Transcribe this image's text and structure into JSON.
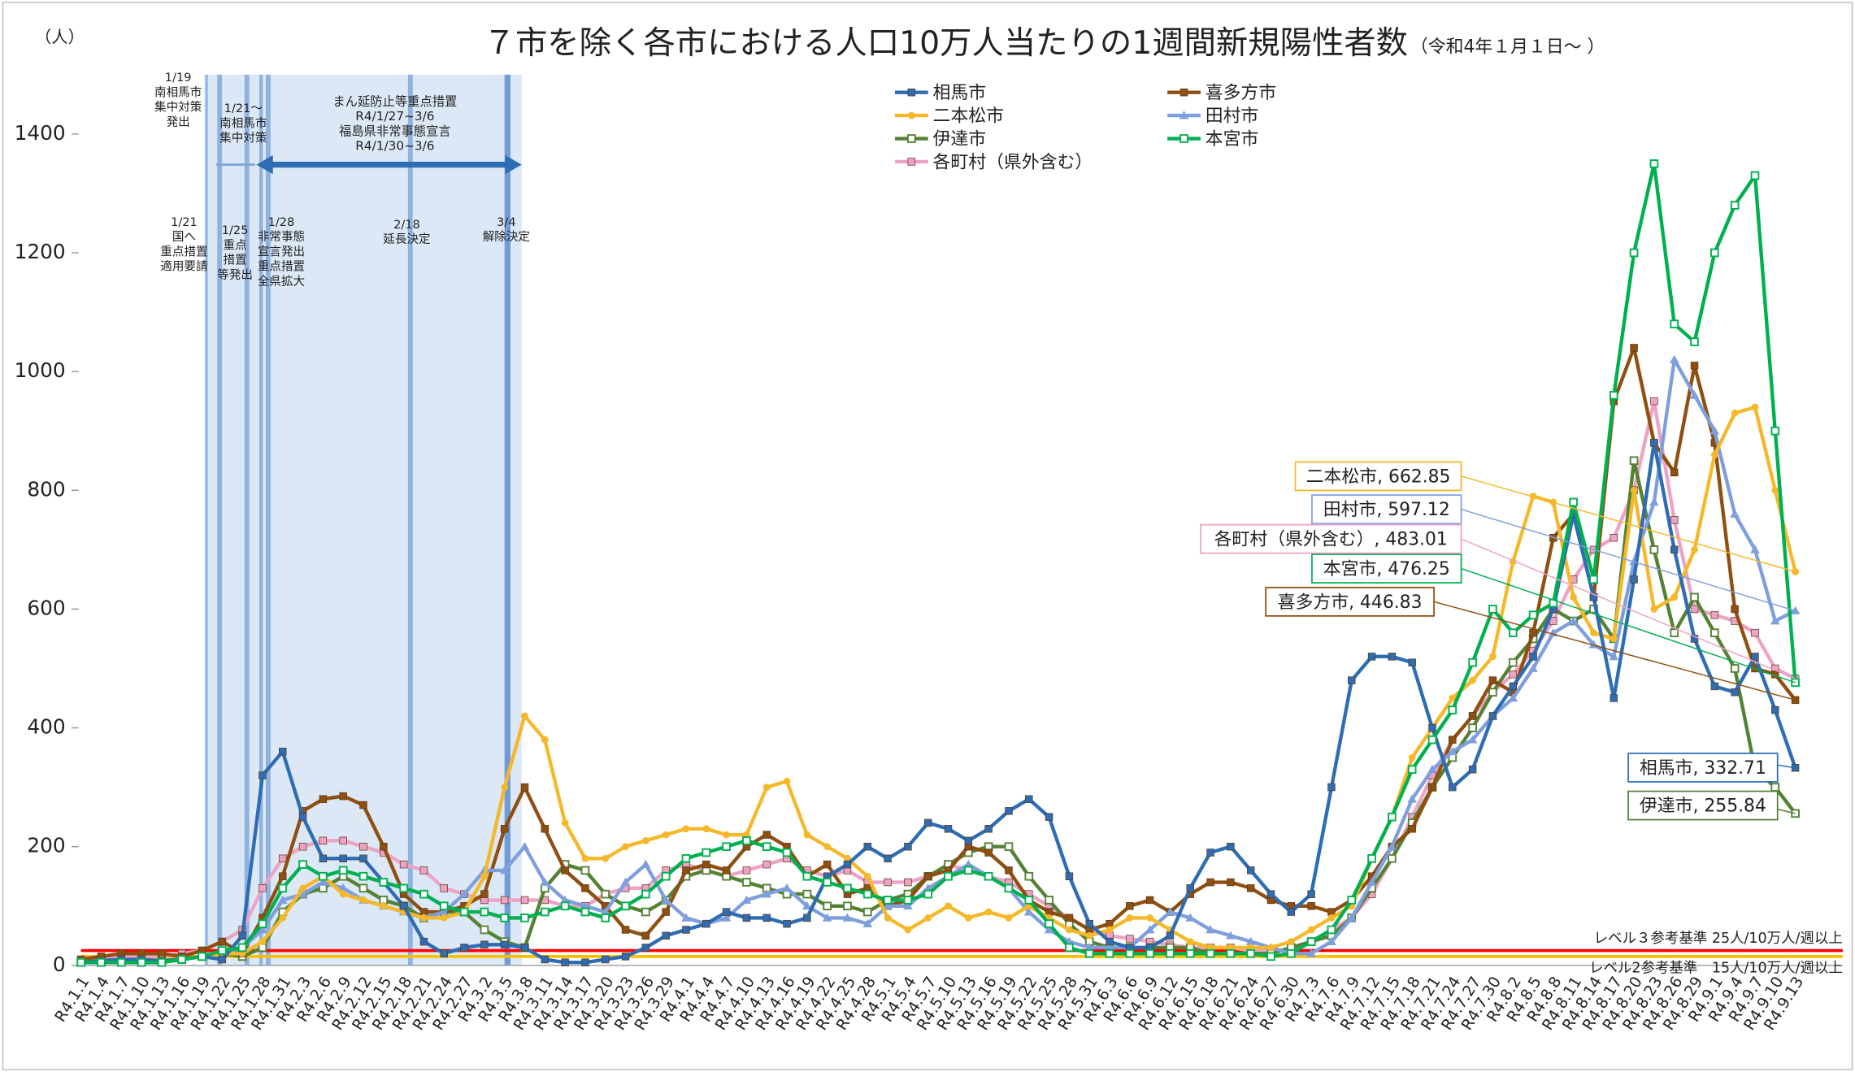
{
  "chart_data": {
    "type": "line",
    "title": "７市を除く各市における人口10万人当たりの1週間新規陽性者数",
    "subtitle": "（令和4年１月１日～ ）",
    "y_label": "（人）",
    "ylim": [
      0,
      1500
    ],
    "yticks": [
      0,
      200,
      400,
      600,
      800,
      1000,
      1200,
      1400
    ],
    "grid": false,
    "categories": [
      "R4.1.1",
      "R4.1.4",
      "R4.1.7",
      "R4.1.10",
      "R4.1.13",
      "R4.1.16",
      "R4.1.19",
      "R4.1.22",
      "R4.1.25",
      "R4.1.28",
      "R4.1.31",
      "R4.2.3",
      "R4.2.6",
      "R4.2.9",
      "R4.2.12",
      "R4.2.15",
      "R4.2.18",
      "R4.2.21",
      "R4.2.24",
      "R4.2.27",
      "R4.3.2",
      "R4.3.5",
      "R4.3.8",
      "R4.3.11",
      "R4.3.14",
      "R4.3.17",
      "R4.3.20",
      "R4.3.23",
      "R4.3.26",
      "R4.3.29",
      "R4.4.1",
      "R4.4.4",
      "R4.4.7",
      "R4.4.10",
      "R4.4.13",
      "R4.4.16",
      "R4.4.19",
      "R4.4.22",
      "R4.4.25",
      "R4.4.28",
      "R4.5.1",
      "R4.5.4",
      "R4.5.7",
      "R4.5.10",
      "R4.5.13",
      "R4.5.16",
      "R4.5.19",
      "R4.5.22",
      "R4.5.25",
      "R4.5.28",
      "R4.5.31",
      "R4.6.3",
      "R4.6.6",
      "R4.6.9",
      "R4.6.12",
      "R4.6.15",
      "R4.6.18",
      "R4.6.21",
      "R4.6.24",
      "R4.6.27",
      "R4.6.30",
      "R4.7.3",
      "R4.7.6",
      "R4.7.9",
      "R4.7.12",
      "R4.7.15",
      "R4.7.18",
      "R4.7.21",
      "R4.7.24",
      "R4.7.27",
      "R4.7.30",
      "R4.8.2",
      "R4.8.5",
      "R4.8.8",
      "R4.8.11",
      "R4.8.14",
      "R4.8.17",
      "R4.8.20",
      "R4.8.23",
      "R4.8.26",
      "R4.8.29",
      "R4.9.1",
      "R4.9.4",
      "R4.9.7",
      "R4.9.10",
      "R4.9.13"
    ],
    "series": [
      {
        "name": "相馬市",
        "color": "#2e6db4",
        "marker": "square",
        "end_label": "相馬市, 332.71",
        "values": [
          5,
          8,
          10,
          10,
          8,
          10,
          15,
          10,
          50,
          320,
          360,
          250,
          180,
          180,
          180,
          140,
          100,
          40,
          20,
          30,
          35,
          35,
          30,
          10,
          5,
          5,
          10,
          15,
          30,
          50,
          60,
          70,
          90,
          80,
          80,
          70,
          80,
          150,
          170,
          200,
          180,
          200,
          240,
          230,
          210,
          230,
          260,
          280,
          250,
          150,
          70,
          40,
          30,
          30,
          50,
          130,
          190,
          200,
          160,
          120,
          90,
          120,
          300,
          480,
          520,
          520,
          510,
          400,
          300,
          330,
          420,
          470,
          520,
          600,
          760,
          620,
          450,
          650,
          880,
          700,
          550,
          470,
          460,
          520,
          430,
          332.71
        ]
      },
      {
        "name": "喜多方市",
        "color": "#8f4f10",
        "marker": "square",
        "end_label": "喜多方市, 446.83",
        "values": [
          10,
          15,
          20,
          20,
          20,
          15,
          25,
          40,
          20,
          80,
          150,
          260,
          280,
          285,
          270,
          200,
          120,
          90,
          90,
          100,
          120,
          230,
          300,
          230,
          160,
          130,
          100,
          60,
          50,
          90,
          160,
          170,
          160,
          200,
          220,
          200,
          150,
          170,
          120,
          130,
          100,
          110,
          150,
          160,
          200,
          190,
          160,
          110,
          90,
          80,
          60,
          70,
          100,
          110,
          90,
          120,
          140,
          140,
          130,
          110,
          100,
          100,
          90,
          110,
          150,
          200,
          230,
          300,
          380,
          420,
          480,
          460,
          560,
          720,
          760,
          620,
          950,
          1040,
          880,
          830,
          1010,
          880,
          600,
          500,
          490,
          446.83
        ]
      },
      {
        "name": "二本松市",
        "color": "#f5b82a",
        "marker": "circle",
        "end_label": "二本松市, 662.85",
        "values": [
          5,
          8,
          10,
          10,
          10,
          10,
          15,
          20,
          20,
          40,
          80,
          130,
          150,
          120,
          110,
          100,
          90,
          80,
          80,
          90,
          150,
          300,
          420,
          380,
          240,
          180,
          180,
          200,
          210,
          220,
          230,
          230,
          220,
          220,
          300,
          310,
          220,
          200,
          180,
          150,
          80,
          60,
          80,
          100,
          80,
          90,
          80,
          100,
          80,
          60,
          50,
          60,
          80,
          80,
          60,
          40,
          30,
          30,
          30,
          30,
          40,
          60,
          80,
          100,
          180,
          250,
          350,
          400,
          450,
          480,
          520,
          680,
          790,
          780,
          620,
          560,
          550,
          800,
          600,
          620,
          700,
          860,
          930,
          940,
          800,
          662.85
        ]
      },
      {
        "name": "田村市",
        "color": "#7f9fdc",
        "marker": "triangle",
        "end_label": "田村市, 597.12",
        "values": [
          5,
          5,
          5,
          5,
          5,
          10,
          15,
          20,
          30,
          60,
          110,
          120,
          140,
          130,
          110,
          100,
          90,
          80,
          90,
          120,
          160,
          160,
          200,
          140,
          110,
          100,
          90,
          140,
          170,
          110,
          80,
          70,
          80,
          110,
          120,
          130,
          100,
          80,
          80,
          70,
          100,
          100,
          130,
          150,
          170,
          150,
          130,
          90,
          60,
          40,
          30,
          30,
          30,
          60,
          90,
          80,
          60,
          50,
          40,
          30,
          20,
          20,
          40,
          80,
          140,
          200,
          280,
          330,
          360,
          380,
          420,
          450,
          500,
          560,
          580,
          540,
          520,
          680,
          780,
          1020,
          960,
          900,
          760,
          700,
          580,
          597.12
        ]
      },
      {
        "name": "伊達市",
        "color": "#548235",
        "marker": "square-open",
        "end_label": "伊達市, 255.84",
        "values": [
          5,
          5,
          5,
          5,
          5,
          10,
          15,
          20,
          15,
          30,
          90,
          120,
          130,
          150,
          130,
          110,
          100,
          80,
          90,
          90,
          60,
          40,
          30,
          130,
          170,
          160,
          120,
          100,
          90,
          110,
          150,
          160,
          150,
          140,
          130,
          120,
          120,
          100,
          100,
          90,
          110,
          120,
          150,
          170,
          190,
          200,
          200,
          150,
          110,
          70,
          40,
          30,
          30,
          30,
          30,
          30,
          20,
          20,
          20,
          20,
          30,
          40,
          50,
          80,
          130,
          180,
          240,
          300,
          350,
          400,
          460,
          510,
          550,
          600,
          580,
          600,
          550,
          850,
          700,
          560,
          620,
          560,
          500,
          330,
          300,
          255.84
        ]
      },
      {
        "name": "本宮市",
        "color": "#00b050",
        "marker": "square-open",
        "end_label": "本宮市, 476.25",
        "values": [
          5,
          5,
          5,
          5,
          5,
          10,
          15,
          25,
          30,
          70,
          130,
          170,
          150,
          160,
          150,
          140,
          130,
          120,
          100,
          90,
          90,
          80,
          80,
          90,
          100,
          90,
          80,
          100,
          120,
          150,
          180,
          190,
          200,
          210,
          200,
          190,
          150,
          140,
          130,
          120,
          110,
          110,
          120,
          150,
          160,
          150,
          130,
          110,
          70,
          30,
          20,
          20,
          20,
          20,
          20,
          20,
          20,
          20,
          20,
          15,
          20,
          40,
          60,
          110,
          180,
          250,
          330,
          380,
          430,
          510,
          600,
          560,
          590,
          610,
          780,
          650,
          960,
          1200,
          1350,
          1080,
          1050,
          1200,
          1280,
          1330,
          900,
          476.25
        ]
      },
      {
        "name": "各町村（県外含む）",
        "color": "#eda3c6",
        "marker": "square",
        "end_label": "各町村（県外含む）, 483.01",
        "values": [
          5,
          10,
          15,
          15,
          15,
          20,
          25,
          40,
          60,
          130,
          180,
          200,
          210,
          210,
          200,
          190,
          170,
          160,
          130,
          120,
          110,
          110,
          110,
          110,
          100,
          100,
          120,
          130,
          130,
          160,
          170,
          160,
          150,
          160,
          170,
          180,
          160,
          150,
          160,
          140,
          140,
          140,
          150,
          170,
          160,
          150,
          140,
          120,
          100,
          80,
          60,
          50,
          45,
          40,
          35,
          30,
          30,
          30,
          25,
          25,
          25,
          40,
          60,
          80,
          120,
          180,
          250,
          320,
          380,
          420,
          460,
          490,
          530,
          580,
          650,
          700,
          720,
          800,
          950,
          750,
          600,
          590,
          580,
          560,
          500,
          483.01
        ]
      }
    ],
    "thresholds": [
      {
        "value": 25,
        "color": "#ff0000",
        "label": "レベル３参考基準 25人/10万人/週以上"
      },
      {
        "value": 15,
        "color": "#ffc000",
        "label": "レベル2参考基準　15人/10万人/週以上"
      }
    ],
    "annotations": [
      {
        "lines": [
          "1/19",
          "南相馬市",
          "集中対策",
          "発出"
        ]
      },
      {
        "lines": [
          "1/21～",
          "南相馬市",
          "集中対策"
        ]
      },
      {
        "lines": [
          "まん延防止等重点措置",
          "R4/1/27~3/6",
          "福島県非常事態宣言",
          "R4/1/30~3/6"
        ]
      },
      {
        "lines": [
          "1/21",
          "国へ",
          "重点措置",
          "適用要請"
        ]
      },
      {
        "lines": [
          "1/25",
          "重点",
          "措置",
          "等発出"
        ]
      },
      {
        "lines": [
          "1/28",
          "非常事態",
          "宣言発出",
          "重点措置",
          "全県拡大"
        ]
      },
      {
        "lines": [
          "2/18",
          "延長決定"
        ]
      },
      {
        "lines": [
          "3/4",
          "解除決定"
        ]
      }
    ]
  }
}
